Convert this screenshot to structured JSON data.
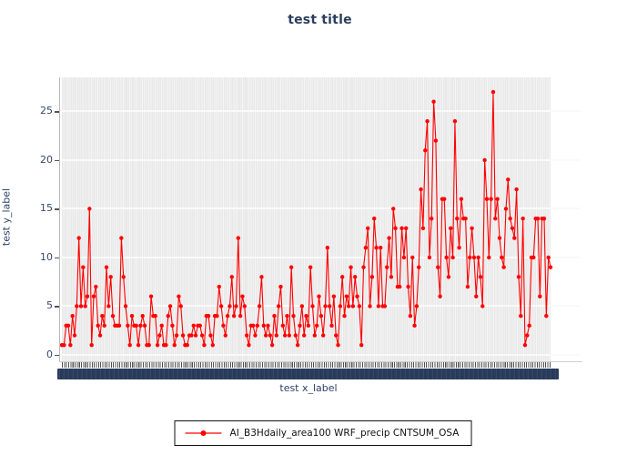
{
  "colors": {
    "series_red": "#ff0000",
    "title_navy": "#2c3e5c",
    "axis_text_navy": "#2e4266",
    "tick_text_navy": "#36476a",
    "plot_stripe_gray": "#e9e9e9",
    "tick_label_band_navy": "#2b3d5c"
  },
  "legend": {
    "label": "AI_B3Hdaily_area100 WRF_precip CNTSUM_OSA",
    "marker": "red-dot-line",
    "position": "bottom-center"
  },
  "chart_data": {
    "type": "line",
    "title": "test title",
    "xlabel": "test x_label",
    "ylabel": "test y_label",
    "grid": true,
    "yticks": [
      0,
      5,
      10,
      15,
      20,
      25
    ],
    "ylim": [
      -0.66,
      28.5
    ],
    "x_ticks_note": "dense overlapping x tick labels rendered as solid dark band (illegible)",
    "legend_position": "bottom-center",
    "series": [
      {
        "name": "AI_B3Hdaily_area100 WRF_precip CNTSUM_OSA",
        "color": "#ff0000",
        "marker": "circle",
        "values": [
          1,
          1,
          3,
          3,
          1,
          4,
          2,
          5,
          12,
          5,
          9,
          5,
          6,
          15,
          1,
          6,
          7,
          3,
          2,
          4,
          3,
          9,
          5,
          8,
          4,
          3,
          3,
          3,
          12,
          8,
          5,
          3,
          1,
          4,
          3,
          3,
          1,
          3,
          4,
          3,
          1,
          1,
          6,
          4,
          4,
          1,
          2,
          3,
          1,
          1,
          4,
          5,
          3,
          1,
          2,
          6,
          5,
          2,
          1,
          1,
          2,
          2,
          3,
          2,
          3,
          3,
          2,
          1,
          4,
          4,
          2,
          1,
          4,
          4,
          7,
          5,
          3,
          2,
          4,
          5,
          8,
          4,
          5,
          12,
          4,
          6,
          5,
          2,
          1,
          3,
          3,
          2,
          3,
          5,
          8,
          3,
          2,
          3,
          2,
          1,
          4,
          2,
          5,
          7,
          3,
          2,
          4,
          2,
          9,
          4,
          2,
          1,
          3,
          5,
          2,
          4,
          3,
          9,
          5,
          2,
          3,
          6,
          4,
          2,
          5,
          11,
          5,
          3,
          6,
          2,
          1,
          5,
          8,
          4,
          6,
          5,
          9,
          5,
          8,
          6,
          5,
          1,
          9,
          11,
          13,
          5,
          8,
          14,
          11,
          5,
          11,
          5,
          5,
          9,
          12,
          8,
          15,
          13,
          7,
          7,
          13,
          10,
          13,
          7,
          4,
          10,
          3,
          5,
          9,
          17,
          13,
          21,
          24,
          10,
          14,
          26,
          22,
          9,
          6,
          16,
          16,
          10,
          8,
          13,
          10,
          24,
          14,
          11,
          16,
          14,
          14,
          7,
          10,
          13,
          10,
          6,
          10,
          8,
          5,
          20,
          16,
          10,
          16,
          27,
          14,
          16,
          12,
          10,
          9,
          15,
          18,
          14,
          13,
          12,
          17,
          8,
          4,
          14,
          1,
          2,
          3,
          10,
          10,
          14,
          14,
          6,
          14,
          14,
          4,
          10,
          9
        ]
      }
    ]
  }
}
